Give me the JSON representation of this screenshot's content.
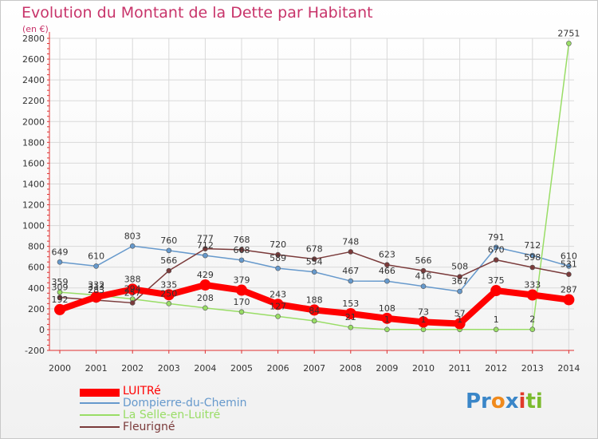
{
  "title": "Evolution du Montant de la Dette par Habitant",
  "unit": "(en €)",
  "logo": "Proxiti",
  "chart_data": {
    "type": "line",
    "x": [
      "2000",
      "2001",
      "2002",
      "2003",
      "2004",
      "2005",
      "2006",
      "2007",
      "2008",
      "2009",
      "2010",
      "2011",
      "2012",
      "2013",
      "2014"
    ],
    "ylim": [
      -200,
      2800
    ],
    "yticks": [
      -200,
      0,
      200,
      400,
      600,
      800,
      1000,
      1200,
      1400,
      1600,
      1800,
      2000,
      2200,
      2400,
      2600,
      2800
    ],
    "grid": true,
    "legend_position": "bottom-left",
    "series": [
      {
        "name": "LUITRé",
        "color": "#ff0000",
        "values": [
          192,
          313,
          388,
          335,
          429,
          379,
          243,
          188,
          153,
          108,
          73,
          57,
          375,
          333,
          287
        ]
      },
      {
        "name": "Dompierre-du-Chemin",
        "color": "#6699cc",
        "values": [
          649,
          610,
          803,
          760,
          712,
          668,
          589,
          554,
          467,
          466,
          416,
          367,
          791,
          712,
          610
        ]
      },
      {
        "name": "La Selle-en-Luitré",
        "color": "#99dd66",
        "values": [
          359,
          332,
          294,
          250,
          208,
          170,
          127,
          84,
          21,
          1,
          1,
          1,
          1,
          2,
          2751
        ]
      },
      {
        "name": "Fleurigné",
        "color": "#7a3a3a",
        "values": [
          309,
          283,
          257,
          566,
          777,
          768,
          720,
          678,
          748,
          623,
          566,
          508,
          670,
          598,
          531
        ]
      }
    ]
  }
}
